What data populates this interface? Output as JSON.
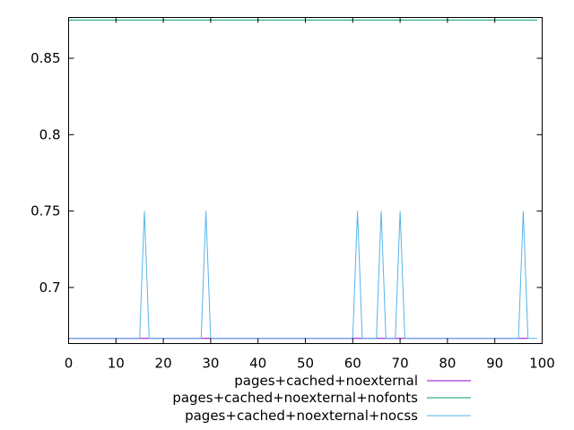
{
  "chart_data": {
    "type": "line",
    "title": "",
    "xlabel": "",
    "ylabel": "",
    "xlim": [
      0,
      100
    ],
    "ylim": [
      0.6633,
      0.8767
    ],
    "xticks": [
      0,
      10,
      20,
      30,
      40,
      50,
      60,
      70,
      80,
      90,
      100
    ],
    "yticks": [
      0.7,
      0.75,
      0.8,
      0.85
    ],
    "ytick_labels": [
      "0.7",
      "0.75",
      "0.8",
      "0.85"
    ],
    "grid": false,
    "legend_position": "bottom-right",
    "series": [
      {
        "name": "pages+cached+noexternal",
        "color": "#9400d3",
        "x": [
          0,
          15,
          16,
          17,
          28,
          29,
          30,
          60,
          61,
          62,
          65,
          66,
          67,
          69,
          70,
          71,
          95,
          96,
          97
        ],
        "y": [
          0.6667,
          0.6667,
          0.6667,
          0.6667,
          0.6667,
          0.6667,
          0.6667,
          0.6667,
          0.6667,
          0.6667,
          0.6667,
          0.6667,
          0.6667,
          0.6667,
          0.6667,
          0.6667,
          0.6667,
          0.6667,
          0.6667
        ]
      },
      {
        "name": "pages+cached+noexternal+nofonts",
        "color": "#009e73",
        "x": [
          0,
          99
        ],
        "y": [
          0.875,
          0.875
        ]
      },
      {
        "name": "pages+cached+noexternal+nocss",
        "color": "#56b4e9",
        "x": [
          0,
          15,
          16,
          17,
          28,
          29,
          30,
          60,
          61,
          62,
          65,
          66,
          67,
          69,
          70,
          71,
          95,
          96,
          97,
          99
        ],
        "y": [
          0.6667,
          0.6667,
          0.75,
          0.6667,
          0.6667,
          0.75,
          0.6667,
          0.6667,
          0.75,
          0.6667,
          0.6667,
          0.75,
          0.6667,
          0.6667,
          0.75,
          0.6667,
          0.6667,
          0.75,
          0.6667,
          0.6667
        ]
      }
    ]
  }
}
